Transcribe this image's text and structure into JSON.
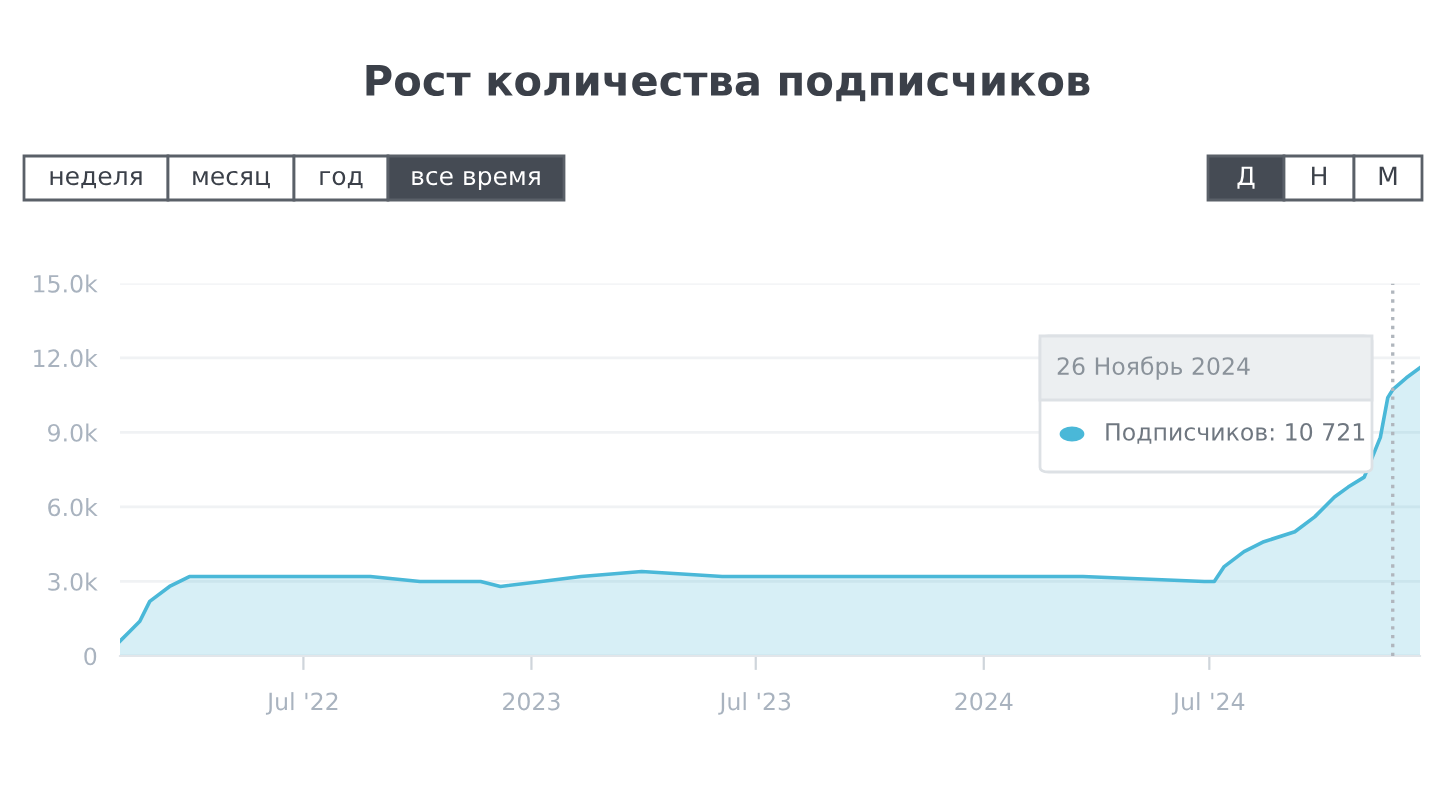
{
  "chart_data": {
    "type": "area",
    "title": "Рост количества подписчиков",
    "x": [
      "2022-02-03",
      "2022-02-11",
      "2022-02-19",
      "2022-02-27",
      "2022-03-15",
      "2022-03-31",
      "2022-04-16",
      "2022-05-11",
      "2022-07-23",
      "2022-08-24",
      "2022-10-03",
      "2022-11-21",
      "2022-12-07",
      "2023-01-09",
      "2023-02-10",
      "2023-03-31",
      "2023-06-04",
      "2023-09-09",
      "2023-12-15",
      "2024-03-21",
      "2024-06-27",
      "2024-07-05",
      "2024-07-13",
      "2024-07-29",
      "2024-08-14",
      "2024-09-08",
      "2024-09-24",
      "2024-10-10",
      "2024-10-21",
      "2024-11-03",
      "2024-11-16",
      "2024-11-22",
      "2024-11-26",
      "2024-12-07",
      "2024-12-18"
    ],
    "series": [
      {
        "color": "#4ab8d8",
        "values": [
          600,
          1000,
          1400,
          2200,
          2800,
          3200,
          3200,
          3200,
          3200,
          3200,
          3000,
          3000,
          2800,
          3000,
          3200,
          3400,
          3200,
          3200,
          3200,
          3200,
          3000,
          3000,
          3600,
          4200,
          4600,
          5000,
          5600,
          6400,
          6800,
          7200,
          8800,
          10400,
          10721,
          11200,
          11600
        ]
      }
    ],
    "xlim": [
      "2022-02-03",
      "2024-12-18"
    ],
    "xticks": [
      {
        "value": "2022-07-01",
        "label": "Jul '22"
      },
      {
        "value": "2023-01-01",
        "label": "2023"
      },
      {
        "value": "2023-07-01",
        "label": "Jul '23"
      },
      {
        "value": "2024-01-01",
        "label": "2024"
      },
      {
        "value": "2024-07-01",
        "label": "Jul '24"
      }
    ],
    "ylim": [
      0,
      15000
    ],
    "yticks": [
      {
        "value": 0,
        "label": "0"
      },
      {
        "value": 3000,
        "label": "3.0k"
      },
      {
        "value": 6000,
        "label": "6.0k"
      },
      {
        "value": 9000,
        "label": "9.0k"
      },
      {
        "value": 12000,
        "label": "12.0k"
      },
      {
        "value": 15000,
        "label": "15.0k"
      }
    ],
    "grid": "y",
    "ref_lines": [
      {
        "axis": "x",
        "value": "2024-11-26",
        "color": "#b0b6bd",
        "line_style": "dotted"
      }
    ],
    "annotations": [
      "26 Ноябрь 2024",
      "Подписчиков: 10 721",
      "неделя",
      "месяц",
      "год",
      "все время",
      "Д",
      "Н",
      "М"
    ]
  }
}
